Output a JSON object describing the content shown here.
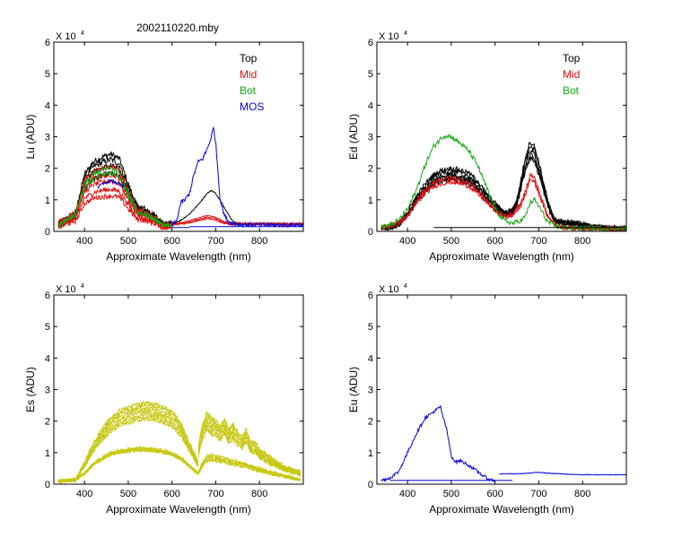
{
  "figure_title": "2002110220.mby",
  "colors": {
    "top": "#000000",
    "mid": "#dd1111",
    "bot": "#11aa11",
    "mos": "#0000dd",
    "es": "#c8c814"
  },
  "chart_data": [
    {
      "type": "line",
      "id": "lu",
      "ylabel": "Lu  (ADU)",
      "xlabel": "Approximate Wavelength (nm)",
      "multiplier": "X 10",
      "exponent": "4",
      "xlim": [
        330,
        900
      ],
      "ylim": [
        0,
        6
      ],
      "xticks": [
        "400",
        "500",
        "600",
        "700",
        "800"
      ],
      "yticks": [
        "0",
        "1",
        "2",
        "3",
        "4",
        "5",
        "6"
      ],
      "legend": [
        {
          "label": "Top",
          "color": "#000000"
        },
        {
          "label": "Mid",
          "color": "#dd1111"
        },
        {
          "label": "Bot",
          "color": "#11aa11"
        },
        {
          "label": "MOS",
          "color": "#0000dd"
        }
      ],
      "series": [
        {
          "name": "Top",
          "color": "#000000",
          "noise": 0.1,
          "replicates": [
            1.0,
            0.93,
            0.85,
            0.75
          ],
          "x": [
            340,
            380,
            400,
            420,
            440,
            460,
            480,
            500,
            520,
            540,
            560,
            580,
            600
          ],
          "y": [
            0.25,
            0.6,
            1.8,
            2.2,
            2.35,
            2.45,
            2.3,
            1.5,
            0.8,
            0.7,
            0.5,
            0.25,
            0.25
          ]
        },
        {
          "name": "Top",
          "color": "#000000",
          "noise": 0.02,
          "replicates": [
            1.0
          ],
          "x": [
            600,
            620,
            640,
            660,
            680,
            690,
            700,
            720,
            740,
            760,
            800,
            900
          ],
          "y": [
            0.25,
            0.35,
            0.55,
            0.85,
            1.2,
            1.3,
            1.2,
            0.75,
            0.3,
            0.25,
            0.25,
            0.25
          ]
        },
        {
          "name": "Mid",
          "color": "#dd1111",
          "noise": 0.08,
          "replicates": [
            1.0,
            0.88,
            0.78,
            0.65,
            0.55
          ],
          "x": [
            340,
            380,
            400,
            420,
            440,
            460,
            480,
            500,
            520,
            540,
            560,
            580,
            600
          ],
          "y": [
            0.25,
            0.6,
            1.6,
            1.9,
            2.0,
            2.05,
            1.95,
            1.3,
            0.7,
            0.6,
            0.45,
            0.22,
            0.22
          ]
        },
        {
          "name": "Mid",
          "color": "#dd1111",
          "noise": 0.02,
          "replicates": [
            1.0,
            0.9,
            0.8
          ],
          "x": [
            600,
            630,
            660,
            680,
            700,
            720,
            740,
            900
          ],
          "y": [
            0.25,
            0.3,
            0.42,
            0.5,
            0.45,
            0.3,
            0.26,
            0.25
          ]
        },
        {
          "name": "Bot",
          "color": "#11aa11",
          "noise": 0.06,
          "replicates": [
            1.0,
            0.92
          ],
          "x": [
            340,
            380,
            400,
            420,
            440,
            460,
            480,
            500,
            520,
            540,
            560,
            580,
            600
          ],
          "y": [
            0.2,
            0.55,
            1.5,
            1.8,
            1.95,
            2.0,
            1.85,
            1.2,
            0.65,
            0.55,
            0.4,
            0.2,
            0.2
          ]
        },
        {
          "name": "MOS",
          "color": "#0000dd",
          "noise": 0.05,
          "replicates": [
            1.0
          ],
          "x": [
            430,
            450,
            460,
            470,
            480,
            490
          ],
          "y": [
            1.4,
            1.55,
            1.6,
            1.55,
            1.5,
            1.4
          ]
        },
        {
          "name": "MOS",
          "color": "#0000dd",
          "noise": 0.07,
          "replicates": [
            1.0
          ],
          "x": [
            600,
            610,
            620,
            630,
            640,
            650,
            660,
            670,
            680,
            690,
            695,
            700,
            705,
            710,
            720,
            730,
            740,
            760,
            800,
            900
          ],
          "y": [
            0.2,
            0.3,
            0.9,
            1.0,
            1.2,
            1.8,
            2.2,
            2.3,
            2.6,
            3.0,
            3.3,
            2.8,
            1.9,
            1.0,
            0.5,
            0.3,
            0.25,
            0.22,
            0.2,
            0.2
          ]
        },
        {
          "name": "MOS",
          "color": "#0000dd",
          "noise": 0.0,
          "replicates": [
            1.0
          ],
          "x": [
            600,
            640
          ],
          "y": [
            0.12,
            0.12
          ]
        },
        {
          "name": "MOS",
          "color": "#0000dd",
          "noise": 0.0,
          "replicates": [
            1.0
          ],
          "x": [
            640,
            900
          ],
          "y": [
            0.15,
            0.15
          ]
        }
      ]
    },
    {
      "type": "line",
      "id": "ed",
      "ylabel": "Ed  (ADU)",
      "xlabel": "Approximate Wavelength (nm)",
      "multiplier": "X 10",
      "exponent": "4",
      "xlim": [
        330,
        900
      ],
      "ylim": [
        0,
        6
      ],
      "xticks": [
        "400",
        "500",
        "600",
        "700",
        "800"
      ],
      "yticks": [
        "0",
        "1",
        "2",
        "3",
        "4",
        "5",
        "6"
      ],
      "legend": [
        {
          "label": "Top",
          "color": "#000000"
        },
        {
          "label": "Mid",
          "color": "#dd1111"
        },
        {
          "label": "Bot",
          "color": "#11aa11"
        }
      ],
      "series": [
        {
          "name": "Top",
          "color": "#000000",
          "noise": 0.08,
          "replicates": [
            1.0,
            0.95,
            0.9,
            0.86,
            0.82
          ],
          "x": [
            340,
            360,
            380,
            400,
            420,
            440,
            460,
            480,
            500,
            520,
            540,
            560,
            580,
            600,
            620,
            640,
            650,
            660,
            670,
            680,
            690,
            700,
            710,
            720,
            730,
            740,
            760,
            780,
            800,
            820,
            850,
            900
          ],
          "y": [
            0.12,
            0.15,
            0.25,
            0.6,
            1.1,
            1.5,
            1.8,
            1.95,
            2.0,
            1.95,
            1.85,
            1.6,
            1.2,
            0.9,
            0.6,
            0.7,
            1.0,
            1.7,
            2.4,
            2.85,
            2.7,
            2.2,
            1.6,
            1.0,
            0.55,
            0.35,
            0.3,
            0.28,
            0.25,
            0.15,
            0.12,
            0.1
          ]
        },
        {
          "name": "Mid",
          "color": "#dd1111",
          "noise": 0.07,
          "replicates": [
            1.0,
            0.92
          ],
          "x": [
            340,
            380,
            400,
            420,
            440,
            460,
            480,
            500,
            520,
            540,
            560,
            580,
            600,
            620,
            640,
            660,
            670,
            680,
            690,
            700,
            720,
            740,
            760,
            800,
            900
          ],
          "y": [
            0.12,
            0.25,
            0.5,
            0.95,
            1.3,
            1.55,
            1.65,
            1.7,
            1.65,
            1.55,
            1.3,
            1.0,
            0.7,
            0.5,
            0.55,
            0.9,
            1.3,
            1.8,
            1.7,
            1.3,
            0.5,
            0.2,
            0.12,
            0.1,
            0.1
          ]
        },
        {
          "name": "Bot",
          "color": "#11aa11",
          "noise": 0.08,
          "replicates": [
            1.0
          ],
          "x": [
            340,
            360,
            380,
            400,
            420,
            440,
            460,
            480,
            490,
            500,
            520,
            540,
            560,
            580,
            600,
            620,
            640,
            660,
            670,
            680,
            690,
            700,
            720,
            740,
            760,
            800,
            900
          ],
          "y": [
            0.12,
            0.2,
            0.35,
            0.7,
            1.3,
            2.1,
            2.7,
            3.0,
            3.05,
            3.0,
            2.8,
            2.55,
            2.1,
            1.4,
            0.7,
            0.35,
            0.25,
            0.35,
            0.5,
            0.9,
            1.0,
            0.8,
            0.3,
            0.15,
            0.12,
            0.1,
            0.1
          ]
        },
        {
          "name": "Top",
          "color": "#000000",
          "noise": 0.0,
          "replicates": [
            1.0
          ],
          "x": [
            460,
            900
          ],
          "y": [
            0.12,
            0.12
          ]
        }
      ]
    },
    {
      "type": "line",
      "id": "es",
      "ylabel": "Es  (ADU)",
      "xlabel": "Approximate Wavelength (nm)",
      "multiplier": "X 10",
      "exponent": "4",
      "xlim": [
        330,
        900
      ],
      "ylim": [
        0,
        6
      ],
      "xticks": [
        "400",
        "500",
        "600",
        "700",
        "800"
      ],
      "yticks": [
        "0",
        "1",
        "2",
        "3",
        "4",
        "5",
        "6"
      ],
      "legend": [],
      "series": [
        {
          "name": "Es",
          "color": "#c8c814",
          "noise": 0.05,
          "replicates": [
            1.0,
            0.97,
            0.94,
            0.91,
            0.88,
            0.85,
            0.82,
            0.79
          ],
          "x": [
            340,
            380,
            400,
            420,
            440,
            460,
            480,
            500,
            520,
            540,
            560,
            580,
            600,
            620,
            640,
            660
          ],
          "y": [
            0.1,
            0.15,
            0.7,
            1.3,
            1.75,
            2.1,
            2.35,
            2.45,
            2.55,
            2.6,
            2.55,
            2.45,
            2.3,
            1.95,
            1.3,
            0.7
          ]
        },
        {
          "name": "Es",
          "color": "#c8c814",
          "noise": 0.04,
          "replicates": [
            1.0,
            0.98,
            0.96,
            0.94,
            0.92
          ],
          "x": [
            340,
            380,
            400,
            420,
            440,
            460,
            480,
            500,
            520,
            540,
            560,
            580,
            600,
            620,
            640,
            660
          ],
          "y": [
            0.1,
            0.15,
            0.35,
            0.65,
            0.85,
            1.0,
            1.08,
            1.12,
            1.15,
            1.15,
            1.13,
            1.08,
            1.0,
            0.85,
            0.6,
            0.35
          ]
        },
        {
          "name": "Es",
          "color": "#c8c814",
          "noise": 0.07,
          "replicates": [
            1.0,
            0.96,
            0.92,
            0.88,
            0.84,
            0.8,
            0.76
          ],
          "x": [
            660,
            670,
            680,
            690,
            700,
            710,
            720,
            730,
            740,
            750,
            760,
            770,
            780,
            790,
            800,
            820,
            840,
            860,
            880,
            890,
            895
          ],
          "y": [
            1.2,
            1.9,
            2.3,
            2.1,
            2.0,
            1.8,
            2.05,
            1.75,
            1.9,
            1.65,
            1.5,
            1.75,
            1.3,
            1.35,
            1.1,
            0.9,
            0.7,
            0.55,
            0.45,
            0.4,
            0.35
          ]
        },
        {
          "name": "Es",
          "color": "#c8c814",
          "noise": 0.04,
          "replicates": [
            1.0,
            0.95,
            0.9,
            0.85,
            0.8
          ],
          "x": [
            660,
            670,
            680,
            690,
            700,
            720,
            740,
            760,
            780,
            800,
            840,
            880,
            895
          ],
          "y": [
            0.4,
            0.7,
            0.9,
            0.95,
            0.9,
            0.85,
            0.75,
            0.7,
            0.6,
            0.5,
            0.35,
            0.2,
            0.15
          ]
        }
      ]
    },
    {
      "type": "line",
      "id": "eu",
      "ylabel": "Eu  (ADU)",
      "xlabel": "Approximate Wavelength (nm)",
      "multiplier": "X 10",
      "exponent": "4",
      "xlim": [
        330,
        900
      ],
      "ylim": [
        0,
        6
      ],
      "xticks": [
        "400",
        "500",
        "600",
        "700",
        "800"
      ],
      "yticks": [
        "0",
        "1",
        "2",
        "3",
        "4",
        "5",
        "6"
      ],
      "legend": [],
      "series": [
        {
          "name": "Eu",
          "color": "#0000dd",
          "noise": 0.05,
          "replicates": [
            1.0
          ],
          "x": [
            340,
            360,
            380,
            400,
            420,
            440,
            460,
            470,
            475,
            480,
            490,
            500,
            510,
            520,
            540,
            560,
            580,
            600
          ],
          "y": [
            0.12,
            0.2,
            0.4,
            1.0,
            1.6,
            2.1,
            2.3,
            2.4,
            2.45,
            2.2,
            1.7,
            0.9,
            0.7,
            0.75,
            0.6,
            0.4,
            0.2,
            0.1
          ]
        },
        {
          "name": "Eu",
          "color": "#0000dd",
          "noise": 0.0,
          "replicates": [
            1.0
          ],
          "x": [
            360,
            640
          ],
          "y": [
            0.12,
            0.12
          ]
        },
        {
          "name": "Eu",
          "color": "#0000dd",
          "noise": 0.01,
          "replicates": [
            1.0
          ],
          "x": [
            610,
            650,
            680,
            700,
            720,
            760,
            800,
            900
          ],
          "y": [
            0.33,
            0.33,
            0.35,
            0.38,
            0.35,
            0.32,
            0.3,
            0.3
          ]
        }
      ]
    }
  ]
}
